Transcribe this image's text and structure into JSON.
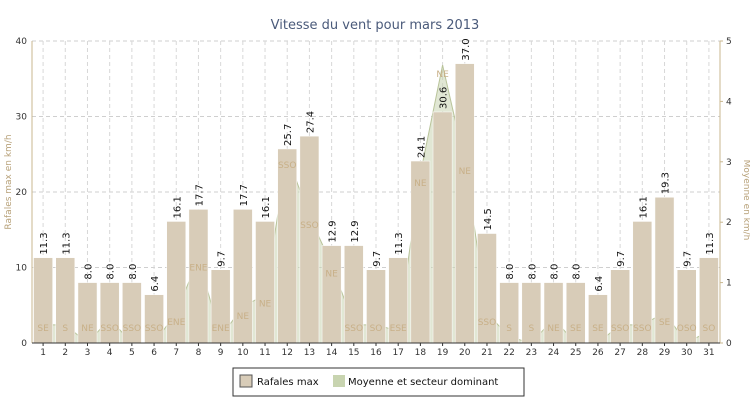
{
  "chart_data": {
    "type": "bar",
    "title": "Vitesse du vent pour mars 2013",
    "ylabel_left": "Rafales max en km/h",
    "ylabel_right": "Moyenne en km/h",
    "ylim_left": [
      0,
      40
    ],
    "ylim_right": [
      0,
      5
    ],
    "yticks_left": [
      "0",
      "10",
      "20",
      "30",
      "40"
    ],
    "yticks_right": [
      "0",
      "1",
      "2",
      "3",
      "4",
      "5"
    ],
    "grid": true,
    "categories": [
      "1",
      "2",
      "3",
      "4",
      "5",
      "6",
      "7",
      "8",
      "9",
      "10",
      "11",
      "12",
      "13",
      "14",
      "15",
      "16",
      "17",
      "18",
      "19",
      "20",
      "21",
      "22",
      "23",
      "24",
      "25",
      "26",
      "27",
      "28",
      "29",
      "30",
      "31"
    ],
    "series": [
      {
        "name": "Rafales max",
        "type": "bar",
        "axis": "left",
        "color": "#d8ccb8",
        "values": [
          11.3,
          11.3,
          8.0,
          8.0,
          8.0,
          6.4,
          16.1,
          17.7,
          9.7,
          17.7,
          16.1,
          25.7,
          27.4,
          12.9,
          12.9,
          9.7,
          11.3,
          24.1,
          30.6,
          37.0,
          14.5,
          8.0,
          8.0,
          8.0,
          8.0,
          6.4,
          9.7,
          16.1,
          19.3,
          9.7,
          11.3
        ],
        "labels": [
          "11.3",
          "11.3",
          "8.0",
          "8.0",
          "8.0",
          "6.4",
          "16.1",
          "17.7",
          "9.7",
          "17.7",
          "16.1",
          "25.7",
          "27.4",
          "12.9",
          "12.9",
          "9.7",
          "11.3",
          "24.1",
          "30.6",
          "37.0",
          "14.5",
          "8.0",
          "8.0",
          "8.0",
          "8.0",
          "6.4",
          "9.7",
          "16.1",
          "19.3",
          "9.7",
          "11.3"
        ]
      },
      {
        "name": "Moyenne et secteur dominant",
        "type": "area",
        "axis": "right",
        "color": "#c8d4b0",
        "values": [
          0.3,
          0.3,
          0.0,
          0.4,
          0.0,
          0.0,
          0.5,
          1.4,
          0.1,
          0.6,
          0.8,
          3.1,
          2.1,
          1.3,
          0.3,
          0.3,
          0.2,
          2.8,
          4.6,
          3.0,
          0.5,
          0.1,
          0.0,
          0.4,
          0.0,
          0.0,
          0.3,
          0.3,
          0.5,
          0.0,
          0.2
        ],
        "sectors": [
          "SE",
          "S",
          "NE",
          "SSO",
          "SSO",
          "SSO",
          "ENE",
          "ENE",
          "ENE",
          "NE",
          "NE",
          "SSO",
          "SSO",
          "NE",
          "SSO",
          "SO",
          "ESE",
          "NE",
          "NE",
          "NE",
          "SSO",
          "S",
          "S",
          "NE",
          "SE",
          "SE",
          "SSO",
          "SSO",
          "SE",
          "OSO",
          "SO"
        ]
      }
    ],
    "legend": {
      "position": "bottom-center",
      "items": [
        "Rafales max",
        "Moyenne et secteur dominant"
      ]
    }
  }
}
